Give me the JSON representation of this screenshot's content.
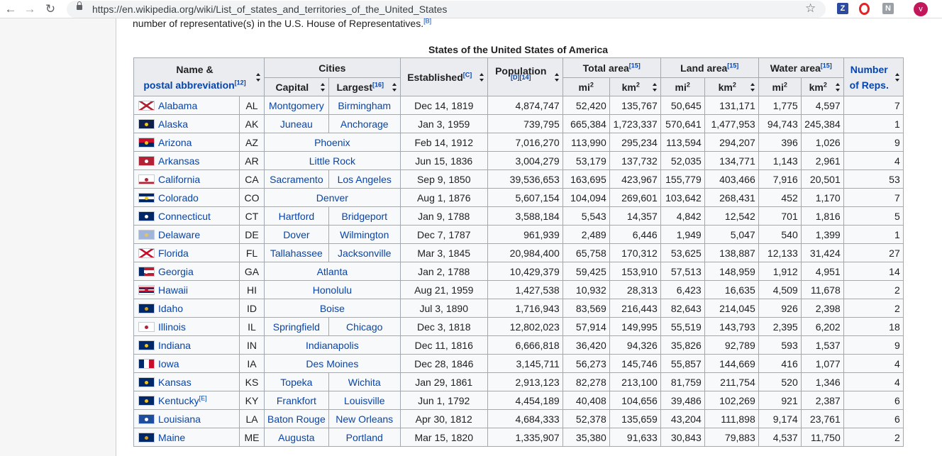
{
  "browser": {
    "url": "https://en.wikipedia.org/wiki/List_of_states_and_territories_of_the_United_States",
    "back_icon": "back-arrow-icon",
    "forward_icon": "forward-arrow-icon",
    "reload_icon": "reload-icon",
    "ext_z_label": "Z",
    "ext_n_label": "N",
    "avatar_label": "v"
  },
  "article": {
    "intro_text": "number of representative(s) in the U.S. House of Representatives.",
    "intro_ref": "[B]",
    "caption": "States of the United States of America"
  },
  "headers": {
    "name_line1": "Name &",
    "name_line2": "postal abbreviation",
    "name_ref": "[12]",
    "cities": "Cities",
    "capital": "Capital",
    "largest": "Largest",
    "largest_ref": "[16]",
    "established": "Established",
    "established_ref": "[C]",
    "population": "Population",
    "population_ref": "[D][14]",
    "total_area": "Total area",
    "total_area_ref": "[15]",
    "land_area": "Land area",
    "land_area_ref": "[15]",
    "water_area": "Water area",
    "water_area_ref": "[15]",
    "mi2": "mi",
    "km2": "km",
    "square": "2",
    "reps_line1": "Number",
    "reps_line2": "of Reps."
  },
  "rows": [
    {
      "name": "Alabama",
      "abbr": "AL",
      "capital": "Montgomery",
      "largest": "Birmingham",
      "established": "Dec 14, 1819",
      "population": "4,874,747",
      "total_mi2": "52,420",
      "total_km2": "135,767",
      "land_mi2": "50,645",
      "land_km2": "131,171",
      "water_mi2": "1,775",
      "water_km2": "4,597",
      "reps": "7"
    },
    {
      "name": "Alaska",
      "abbr": "AK",
      "capital": "Juneau",
      "largest": "Anchorage",
      "established": "Jan 3, 1959",
      "population": "739,795",
      "total_mi2": "665,384",
      "total_km2": "1,723,337",
      "land_mi2": "570,641",
      "land_km2": "1,477,953",
      "water_mi2": "94,743",
      "water_km2": "245,384",
      "reps": "1"
    },
    {
      "name": "Arizona",
      "abbr": "AZ",
      "capital": "Phoenix",
      "largest": "",
      "established": "Feb 14, 1912",
      "population": "7,016,270",
      "total_mi2": "113,990",
      "total_km2": "295,234",
      "land_mi2": "113,594",
      "land_km2": "294,207",
      "water_mi2": "396",
      "water_km2": "1,026",
      "reps": "9"
    },
    {
      "name": "Arkansas",
      "abbr": "AR",
      "capital": "Little Rock",
      "largest": "",
      "established": "Jun 15, 1836",
      "population": "3,004,279",
      "total_mi2": "53,179",
      "total_km2": "137,732",
      "land_mi2": "52,035",
      "land_km2": "134,771",
      "water_mi2": "1,143",
      "water_km2": "2,961",
      "reps": "4"
    },
    {
      "name": "California",
      "abbr": "CA",
      "capital": "Sacramento",
      "largest": "Los Angeles",
      "established": "Sep 9, 1850",
      "population": "39,536,653",
      "total_mi2": "163,695",
      "total_km2": "423,967",
      "land_mi2": "155,779",
      "land_km2": "403,466",
      "water_mi2": "7,916",
      "water_km2": "20,501",
      "reps": "53"
    },
    {
      "name": "Colorado",
      "abbr": "CO",
      "capital": "Denver",
      "largest": "",
      "established": "Aug 1, 1876",
      "population": "5,607,154",
      "total_mi2": "104,094",
      "total_km2": "269,601",
      "land_mi2": "103,642",
      "land_km2": "268,431",
      "water_mi2": "452",
      "water_km2": "1,170",
      "reps": "7"
    },
    {
      "name": "Connecticut",
      "abbr": "CT",
      "capital": "Hartford",
      "largest": "Bridgeport",
      "established": "Jan 9, 1788",
      "population": "3,588,184",
      "total_mi2": "5,543",
      "total_km2": "14,357",
      "land_mi2": "4,842",
      "land_km2": "12,542",
      "water_mi2": "701",
      "water_km2": "1,816",
      "reps": "5"
    },
    {
      "name": "Delaware",
      "abbr": "DE",
      "capital": "Dover",
      "largest": "Wilmington",
      "established": "Dec 7, 1787",
      "population": "961,939",
      "total_mi2": "2,489",
      "total_km2": "6,446",
      "land_mi2": "1,949",
      "land_km2": "5,047",
      "water_mi2": "540",
      "water_km2": "1,399",
      "reps": "1"
    },
    {
      "name": "Florida",
      "abbr": "FL",
      "capital": "Tallahassee",
      "largest": "Jacksonville",
      "established": "Mar 3, 1845",
      "population": "20,984,400",
      "total_mi2": "65,758",
      "total_km2": "170,312",
      "land_mi2": "53,625",
      "land_km2": "138,887",
      "water_mi2": "12,133",
      "water_km2": "31,424",
      "reps": "27"
    },
    {
      "name": "Georgia",
      "abbr": "GA",
      "capital": "Atlanta",
      "largest": "",
      "established": "Jan 2, 1788",
      "population": "10,429,379",
      "total_mi2": "59,425",
      "total_km2": "153,910",
      "land_mi2": "57,513",
      "land_km2": "148,959",
      "water_mi2": "1,912",
      "water_km2": "4,951",
      "reps": "14"
    },
    {
      "name": "Hawaii",
      "abbr": "HI",
      "capital": "Honolulu",
      "largest": "",
      "established": "Aug 21, 1959",
      "population": "1,427,538",
      "total_mi2": "10,932",
      "total_km2": "28,313",
      "land_mi2": "6,423",
      "land_km2": "16,635",
      "water_mi2": "4,509",
      "water_km2": "11,678",
      "reps": "2"
    },
    {
      "name": "Idaho",
      "abbr": "ID",
      "capital": "Boise",
      "largest": "",
      "established": "Jul 3, 1890",
      "population": "1,716,943",
      "total_mi2": "83,569",
      "total_km2": "216,443",
      "land_mi2": "82,643",
      "land_km2": "214,045",
      "water_mi2": "926",
      "water_km2": "2,398",
      "reps": "2"
    },
    {
      "name": "Illinois",
      "abbr": "IL",
      "capital": "Springfield",
      "largest": "Chicago",
      "established": "Dec 3, 1818",
      "population": "12,802,023",
      "total_mi2": "57,914",
      "total_km2": "149,995",
      "land_mi2": "55,519",
      "land_km2": "143,793",
      "water_mi2": "2,395",
      "water_km2": "6,202",
      "reps": "18"
    },
    {
      "name": "Indiana",
      "abbr": "IN",
      "capital": "Indianapolis",
      "largest": "",
      "established": "Dec 11, 1816",
      "population": "6,666,818",
      "total_mi2": "36,420",
      "total_km2": "94,326",
      "land_mi2": "35,826",
      "land_km2": "92,789",
      "water_mi2": "593",
      "water_km2": "1,537",
      "reps": "9"
    },
    {
      "name": "Iowa",
      "abbr": "IA",
      "capital": "Des Moines",
      "largest": "",
      "established": "Dec 28, 1846",
      "population": "3,145,711",
      "total_mi2": "56,273",
      "total_km2": "145,746",
      "land_mi2": "55,857",
      "land_km2": "144,669",
      "water_mi2": "416",
      "water_km2": "1,077",
      "reps": "4"
    },
    {
      "name": "Kansas",
      "abbr": "KS",
      "capital": "Topeka",
      "largest": "Wichita",
      "established": "Jan 29, 1861",
      "population": "2,913,123",
      "total_mi2": "82,278",
      "total_km2": "213,100",
      "land_mi2": "81,759",
      "land_km2": "211,754",
      "water_mi2": "520",
      "water_km2": "1,346",
      "reps": "4"
    },
    {
      "name": "Kentucky",
      "name_ref": "[E]",
      "abbr": "KY",
      "capital": "Frankfort",
      "largest": "Louisville",
      "established": "Jun 1, 1792",
      "population": "4,454,189",
      "total_mi2": "40,408",
      "total_km2": "104,656",
      "land_mi2": "39,486",
      "land_km2": "102,269",
      "water_mi2": "921",
      "water_km2": "2,387",
      "reps": "6"
    },
    {
      "name": "Louisiana",
      "abbr": "LA",
      "capital": "Baton Rouge",
      "largest": "New Orleans",
      "established": "Apr 30, 1812",
      "population": "4,684,333",
      "total_mi2": "52,378",
      "total_km2": "135,659",
      "land_mi2": "43,204",
      "land_km2": "111,898",
      "water_mi2": "9,174",
      "water_km2": "23,761",
      "reps": "6"
    },
    {
      "name": "Maine",
      "abbr": "ME",
      "capital": "Augusta",
      "largest": "Portland",
      "established": "Mar 15, 1820",
      "population": "1,335,907",
      "total_mi2": "35,380",
      "total_km2": "91,633",
      "land_mi2": "30,843",
      "land_km2": "79,883",
      "water_mi2": "4,537",
      "water_km2": "11,750",
      "reps": "2"
    }
  ],
  "flags": [
    "alabama-flag-icon",
    "alaska-flag-icon",
    "arizona-flag-icon",
    "arkansas-flag-icon",
    "california-flag-icon",
    "colorado-flag-icon",
    "connecticut-flag-icon",
    "delaware-flag-icon",
    "florida-flag-icon",
    "georgia-flag-icon",
    "hawaii-flag-icon",
    "idaho-flag-icon",
    "illinois-flag-icon",
    "indiana-flag-icon",
    "iowa-flag-icon",
    "kansas-flag-icon",
    "kentucky-flag-icon",
    "louisiana-flag-icon",
    "maine-flag-icon"
  ],
  "colors": {
    "link": "#0645ad",
    "header_bg": "#eaecf0",
    "cell_bg": "#f8f9fa",
    "border": "#a2a9b1"
  }
}
